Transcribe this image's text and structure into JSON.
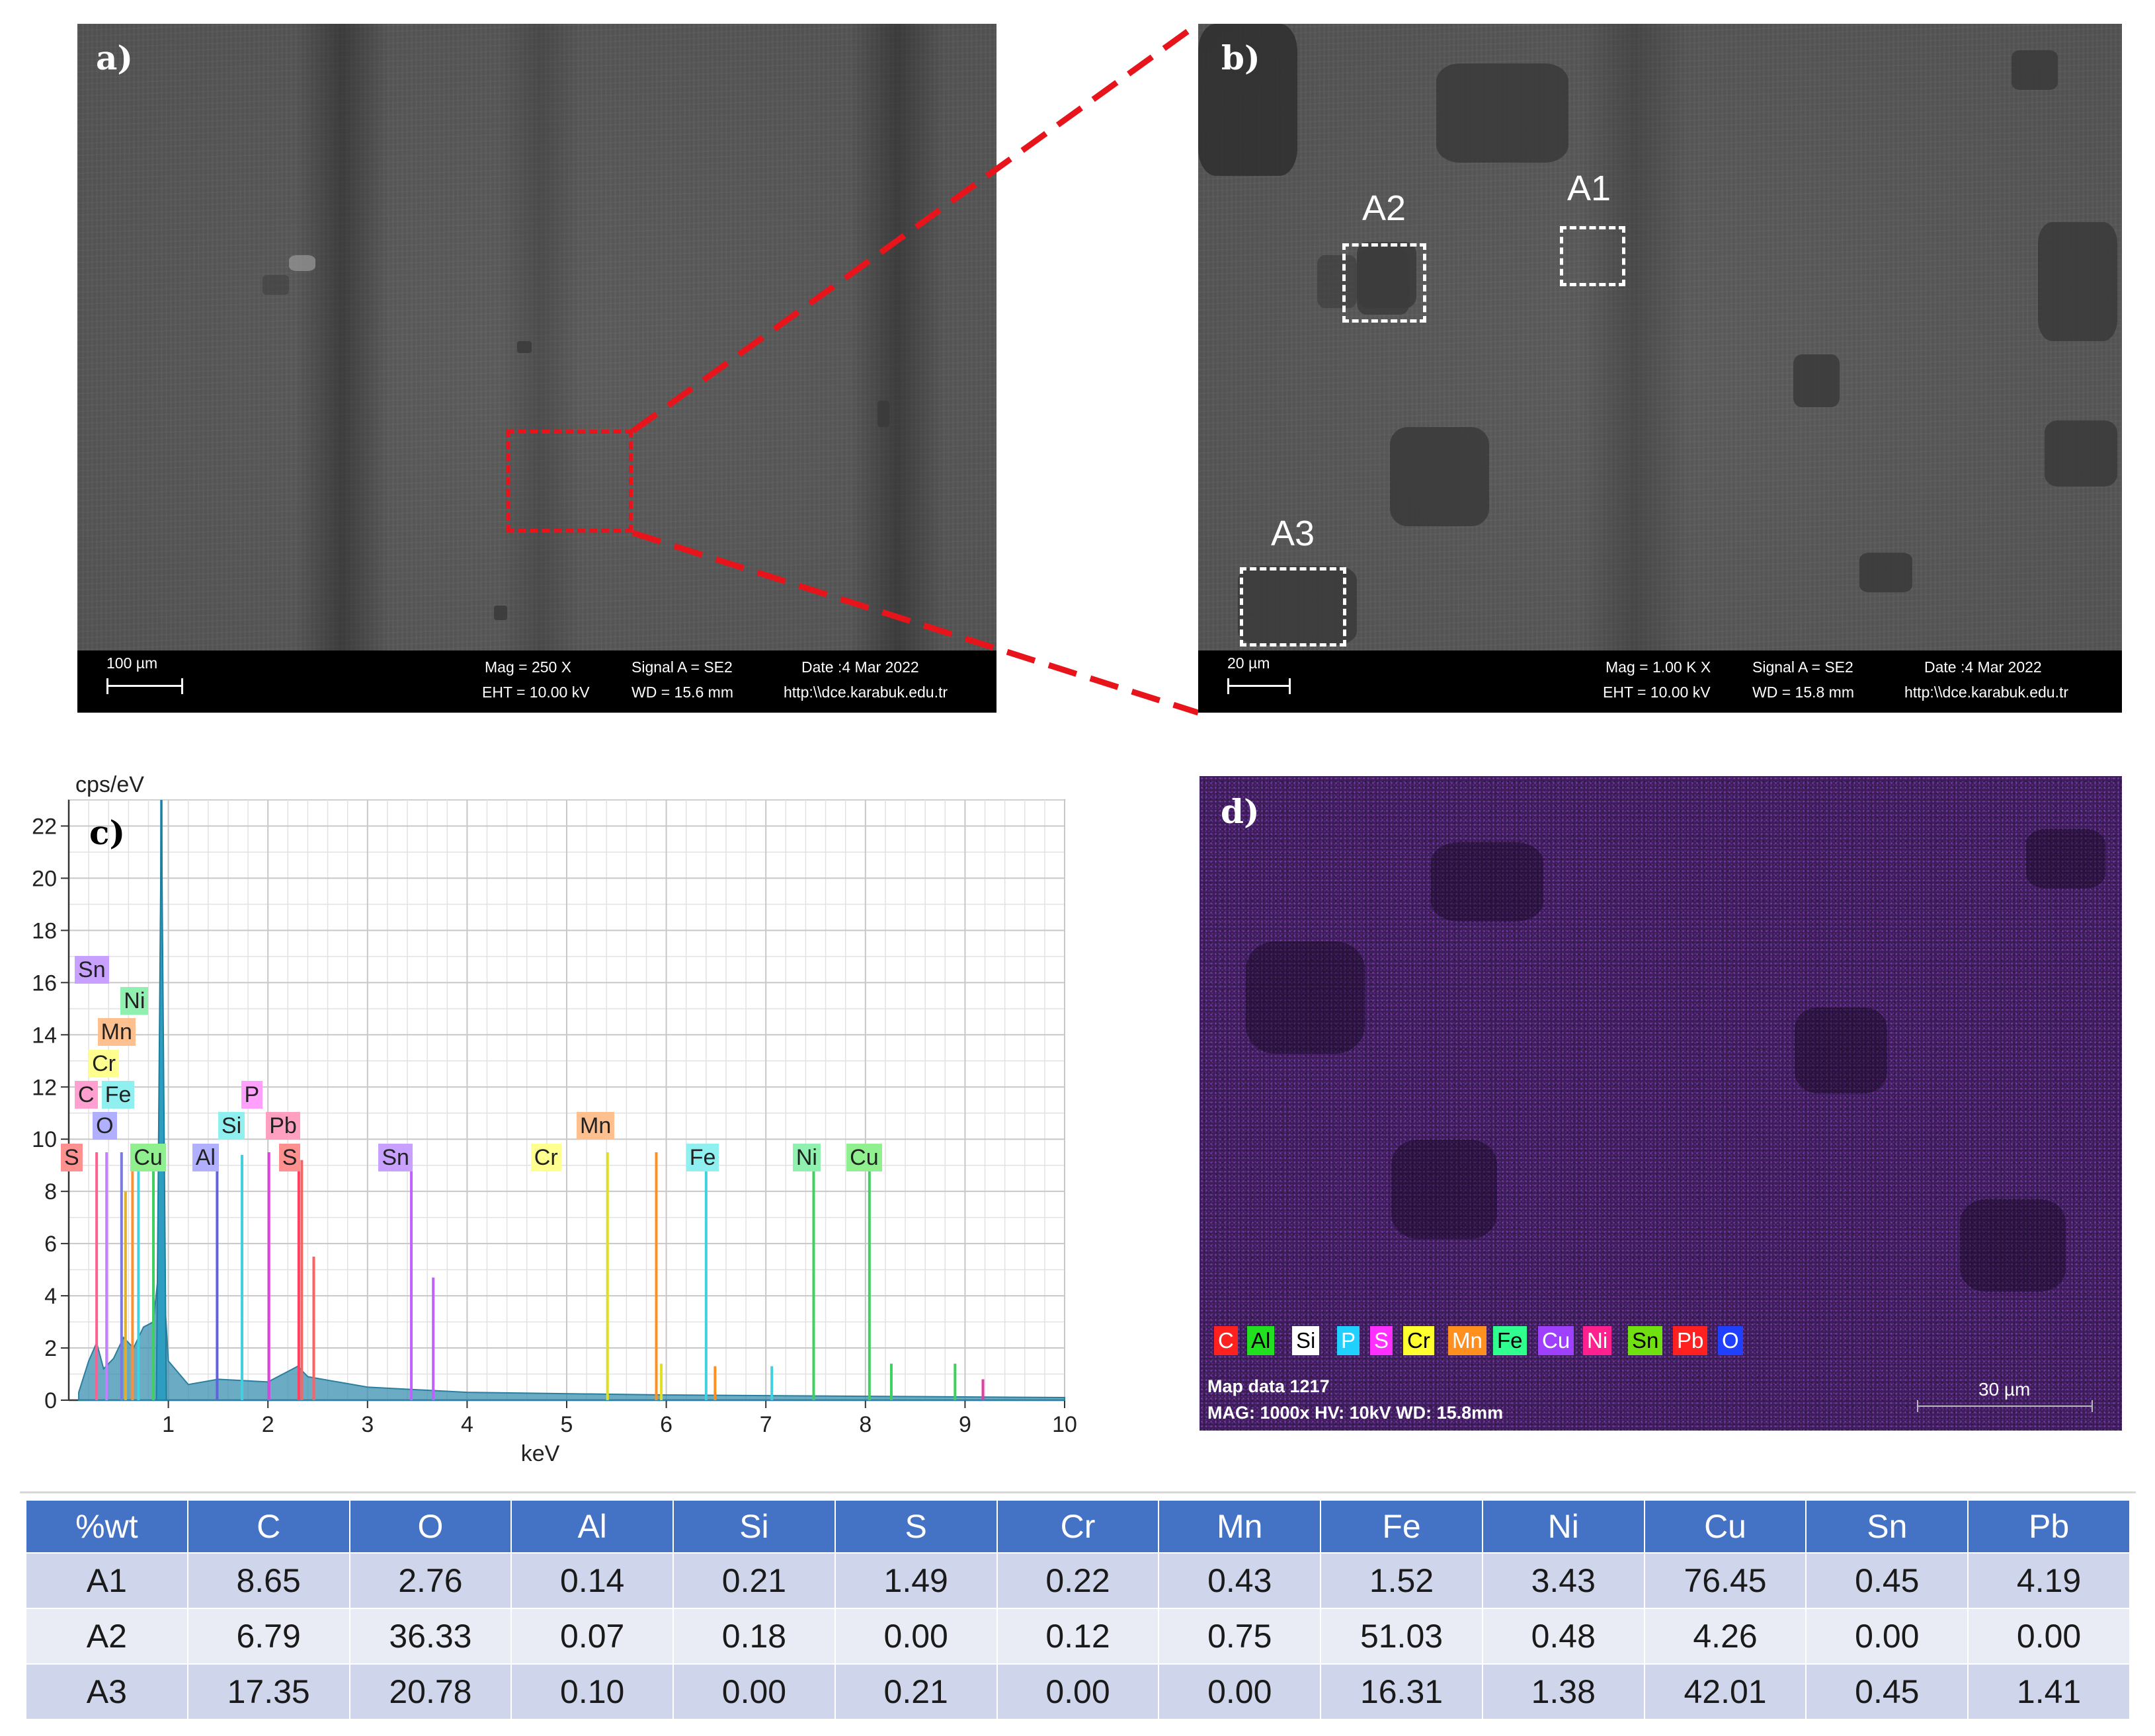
{
  "panel_a": {
    "label": "a)",
    "scale": "100 µm",
    "mag": "Mag =   250 X",
    "eht": "EHT = 10.00 kV",
    "signal": "Signal A = SE2",
    "wd": "WD = 15.6 mm",
    "date": "Date :4 Mar 2022",
    "url": "http:\\\\dce.karabuk.edu.tr"
  },
  "panel_b": {
    "label": "b)",
    "scale": "20 µm",
    "mag": "Mag =   1.00 K X",
    "eht": "EHT = 10.00 kV",
    "signal": "Signal A = SE2",
    "wd": "WD = 15.8 mm",
    "date": "Date :4 Mar 2022",
    "url": "http:\\\\dce.karabuk.edu.tr",
    "regions": [
      "A1",
      "A2",
      "A3"
    ]
  },
  "panel_c": {
    "label": "c)"
  },
  "panel_d": {
    "label": "d)",
    "legend": [
      {
        "el": "C",
        "color": "#ff2020"
      },
      {
        "el": "Al",
        "color": "#20e020"
      },
      {
        "el": "Si",
        "color": "#ffffff"
      },
      {
        "el": "P",
        "color": "#20d0ff"
      },
      {
        "el": "S",
        "color": "#ff30ff"
      },
      {
        "el": "Cr",
        "color": "#ffff30"
      },
      {
        "el": "Mn",
        "color": "#ff9020"
      },
      {
        "el": "Fe",
        "color": "#30ff90"
      },
      {
        "el": "Cu",
        "color": "#a040ff"
      },
      {
        "el": "Ni",
        "color": "#ff2090"
      },
      {
        "el": "Sn",
        "color": "#70e010"
      },
      {
        "el": "Pb",
        "color": "#ff2020"
      },
      {
        "el": "O",
        "color": "#2040ff"
      }
    ],
    "map_name": "Map data 1217",
    "map_info": "MAG: 1000x  HV: 10kV  WD: 15.8mm",
    "scale": "30 µm"
  },
  "chart_data": {
    "type": "line",
    "ylabel": "cps/eV",
    "xlabel": "keV",
    "xlim": [
      0,
      10
    ],
    "ylim": [
      0,
      23
    ],
    "xticks": [
      1,
      2,
      3,
      4,
      5,
      6,
      7,
      8,
      9,
      10
    ],
    "yticks": [
      0,
      2,
      4,
      6,
      8,
      10,
      12,
      14,
      16,
      18,
      20,
      22
    ],
    "grid": true,
    "peaks": [
      {
        "x": 0.93,
        "y": 23.0,
        "color": "#4aa3c8"
      },
      {
        "x": 0.28,
        "y": 9.5,
        "color": "#ff6090"
      },
      {
        "x": 0.53,
        "y": 9.5,
        "color": "#7a7ae0"
      },
      {
        "x": 0.57,
        "y": 8.0,
        "color": "#e0b030"
      },
      {
        "x": 0.64,
        "y": 9.4,
        "color": "#ff9030"
      },
      {
        "x": 0.7,
        "y": 9.3,
        "color": "#40d0e0"
      },
      {
        "x": 0.85,
        "y": 9.5,
        "color": "#40d060"
      },
      {
        "x": 0.38,
        "y": 9.5,
        "color": "#c080ff"
      },
      {
        "x": 1.49,
        "y": 9.5,
        "color": "#6060e0"
      },
      {
        "x": 1.74,
        "y": 9.4,
        "color": "#40d0e0"
      },
      {
        "x": 2.01,
        "y": 9.5,
        "color": "#e040e0"
      },
      {
        "x": 2.31,
        "y": 9.5,
        "color": "#ff4060"
      },
      {
        "x": 2.34,
        "y": 9.2,
        "color": "#ff6060"
      },
      {
        "x": 2.46,
        "y": 5.5,
        "color": "#ff6060"
      },
      {
        "x": 3.44,
        "y": 9.5,
        "color": "#c060ff"
      },
      {
        "x": 3.66,
        "y": 4.7,
        "color": "#c060ff"
      },
      {
        "x": 5.41,
        "y": 9.5,
        "color": "#e0e020"
      },
      {
        "x": 5.9,
        "y": 9.5,
        "color": "#ff9020"
      },
      {
        "x": 5.95,
        "y": 1.4,
        "color": "#e0e020"
      },
      {
        "x": 6.4,
        "y": 9.5,
        "color": "#40d0e0"
      },
      {
        "x": 6.49,
        "y": 1.3,
        "color": "#ff9020"
      },
      {
        "x": 7.06,
        "y": 1.3,
        "color": "#40d0e0"
      },
      {
        "x": 7.48,
        "y": 9.5,
        "color": "#40d060"
      },
      {
        "x": 8.04,
        "y": 9.5,
        "color": "#40d060"
      },
      {
        "x": 8.26,
        "y": 1.4,
        "color": "#40d060"
      },
      {
        "x": 8.9,
        "y": 1.4,
        "color": "#40d060"
      },
      {
        "x": 9.18,
        "y": 0.8,
        "color": "#e040a0"
      }
    ],
    "labels": [
      {
        "text": "Sn",
        "x": 0.06,
        "y": 16.5,
        "color": "#c8a0ff"
      },
      {
        "text": "Ni",
        "x": 0.52,
        "y": 15.3,
        "color": "#90f0b0"
      },
      {
        "text": "Mn",
        "x": 0.29,
        "y": 14.1,
        "color": "#ffc090"
      },
      {
        "text": "Cr",
        "x": 0.2,
        "y": 12.9,
        "color": "#ffff90"
      },
      {
        "text": "C",
        "x": 0.06,
        "y": 11.7,
        "color": "#ffa0d0"
      },
      {
        "text": "Fe",
        "x": 0.33,
        "y": 11.7,
        "color": "#90f0f0"
      },
      {
        "text": "P",
        "x": 1.73,
        "y": 11.7,
        "color": "#ffa0ff"
      },
      {
        "text": "O",
        "x": 0.24,
        "y": 10.5,
        "color": "#b0b0ff"
      },
      {
        "text": "Si",
        "x": 1.5,
        "y": 10.5,
        "color": "#90f0f0"
      },
      {
        "text": "Pb",
        "x": 1.98,
        "y": 10.5,
        "color": "#ffa0c0"
      },
      {
        "text": "Mn",
        "x": 5.1,
        "y": 10.5,
        "color": "#ffc090"
      },
      {
        "text": "S",
        "x": -0.08,
        "y": 9.3,
        "color": "#ff9090"
      },
      {
        "text": "Cu",
        "x": 0.62,
        "y": 9.3,
        "color": "#90f090"
      },
      {
        "text": "Al",
        "x": 1.24,
        "y": 9.3,
        "color": "#b0b0ff"
      },
      {
        "text": "S",
        "x": 2.11,
        "y": 9.3,
        "color": "#ff9090"
      },
      {
        "text": "Sn",
        "x": 3.11,
        "y": 9.3,
        "color": "#c8a0ff"
      },
      {
        "text": "Cr",
        "x": 4.64,
        "y": 9.3,
        "color": "#ffff90"
      },
      {
        "text": "Fe",
        "x": 6.2,
        "y": 9.3,
        "color": "#90f0f0"
      },
      {
        "text": "Ni",
        "x": 7.27,
        "y": 9.3,
        "color": "#90f0b0"
      },
      {
        "text": "Cu",
        "x": 7.81,
        "y": 9.3,
        "color": "#90f090"
      }
    ]
  },
  "table": {
    "headers": [
      "%wt",
      "C",
      "O",
      "Al",
      "Si",
      "S",
      "Cr",
      "Mn",
      "Fe",
      "Ni",
      "Cu",
      "Sn",
      "Pb"
    ],
    "rows": [
      [
        "A1",
        "8.65",
        "2.76",
        "0.14",
        "0.21",
        "1.49",
        "0.22",
        "0.43",
        "1.52",
        "3.43",
        "76.45",
        "0.45",
        "4.19"
      ],
      [
        "A2",
        "6.79",
        "36.33",
        "0.07",
        "0.18",
        "0.00",
        "0.12",
        "0.75",
        "51.03",
        "0.48",
        "4.26",
        "0.00",
        "0.00"
      ],
      [
        "A3",
        "17.35",
        "20.78",
        "0.10",
        "0.00",
        "0.21",
        "0.00",
        "0.00",
        "16.31",
        "1.38",
        "42.01",
        "0.45",
        "1.41"
      ]
    ]
  }
}
